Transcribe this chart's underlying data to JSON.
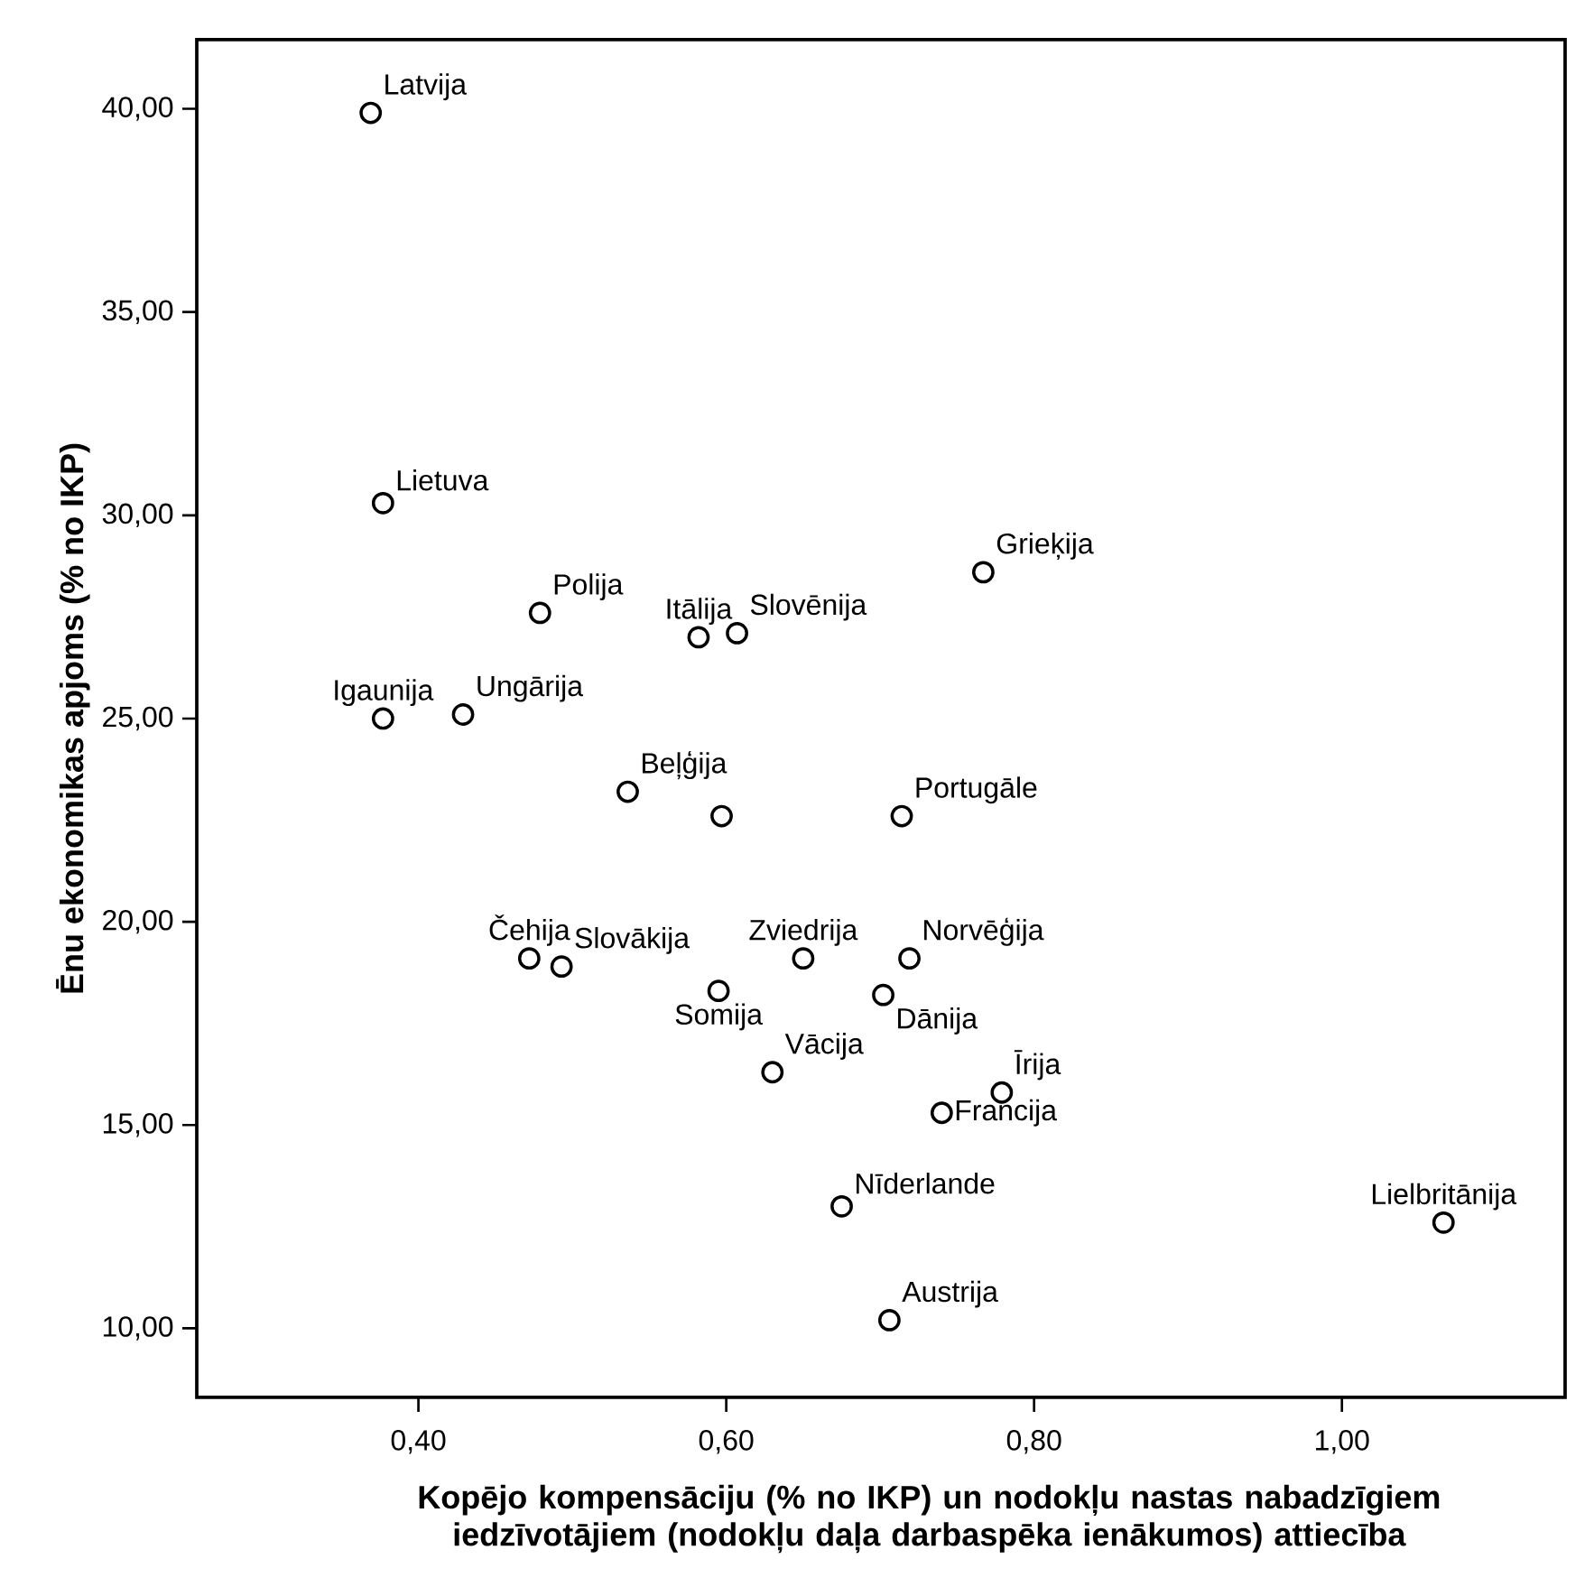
{
  "chart_data": {
    "type": "scatter",
    "xlabel": "Kopējo kompensāciju (% no IKP) un nodokļu nastas nabadzīgiem iedzīvotājiem (nodokļu daļa darbaspēka ienākumos) attiecība",
    "ylabel": "Ēnu ekonomikas apjoms (% no IKP)",
    "x": [
      0.369,
      0.377,
      0.479,
      0.582,
      0.607,
      0.767,
      0.377,
      0.429,
      0.536,
      0.597,
      0.714,
      0.472,
      0.493,
      0.65,
      0.719,
      0.595,
      0.63,
      0.702,
      0.779,
      0.74,
      0.675,
      1.066,
      0.706
    ],
    "values": [
      39.9,
      30.3,
      27.6,
      27.0,
      27.1,
      28.6,
      25.0,
      25.1,
      23.2,
      22.6,
      22.6,
      19.1,
      18.9,
      19.1,
      19.1,
      18.3,
      16.3,
      18.2,
      15.8,
      15.3,
      13.0,
      12.6,
      10.2
    ],
    "color": "#000000",
    "marker": "circle",
    "xlim": [
      0.256,
      1.145
    ],
    "ylim": [
      8.3,
      41.7
    ],
    "xticks": [
      {
        "value": 0.4,
        "label": "0,40"
      },
      {
        "value": 0.6,
        "label": "0,60"
      },
      {
        "value": 0.8,
        "label": "0,80"
      },
      {
        "value": 1.0,
        "label": "1,00"
      }
    ],
    "yticks": [
      {
        "value": 10,
        "label": "10,00"
      },
      {
        "value": 15,
        "label": "15,00"
      },
      {
        "value": 20,
        "label": "20,00"
      },
      {
        "value": 25,
        "label": "25,00"
      },
      {
        "value": 30,
        "label": "30,00"
      },
      {
        "value": 35,
        "label": "35,00"
      },
      {
        "value": 40,
        "label": "40,00"
      }
    ],
    "annotations": [
      {
        "text": "Latvija",
        "x": 0.369,
        "y": 39.9
      },
      {
        "text": "Lietuva",
        "x": 0.377,
        "y": 30.3
      },
      {
        "text": "Polija",
        "x": 0.479,
        "y": 27.6
      },
      {
        "text": "Itālija",
        "x": 0.582,
        "y": 27.0
      },
      {
        "text": "Slovēnija",
        "x": 0.607,
        "y": 27.1
      },
      {
        "text": "Grieķija",
        "x": 0.767,
        "y": 28.6
      },
      {
        "text": "Igaunija",
        "x": 0.377,
        "y": 25.0
      },
      {
        "text": "Ungārija",
        "x": 0.429,
        "y": 25.1
      },
      {
        "text": "Beļģija",
        "x": 0.536,
        "y": 23.2
      },
      {
        "text": "Portugāle",
        "x": 0.714,
        "y": 22.6
      },
      {
        "text": "Čehija",
        "x": 0.472,
        "y": 19.1
      },
      {
        "text": "Slovākija",
        "x": 0.493,
        "y": 18.9
      },
      {
        "text": "Zviedrija",
        "x": 0.65,
        "y": 19.1
      },
      {
        "text": "Norvēģija",
        "x": 0.719,
        "y": 19.1
      },
      {
        "text": "Somija",
        "x": 0.595,
        "y": 18.3
      },
      {
        "text": "Vācija",
        "x": 0.63,
        "y": 16.3
      },
      {
        "text": "Dānija",
        "x": 0.702,
        "y": 18.2
      },
      {
        "text": "Īrija",
        "x": 0.779,
        "y": 15.8
      },
      {
        "text": "Francija",
        "x": 0.74,
        "y": 15.3
      },
      {
        "text": "Nīderlande",
        "x": 0.675,
        "y": 13.0
      },
      {
        "text": "Lielbritānija",
        "x": 1.066,
        "y": 12.6
      },
      {
        "text": "Austrija",
        "x": 0.706,
        "y": 10.2
      }
    ]
  }
}
